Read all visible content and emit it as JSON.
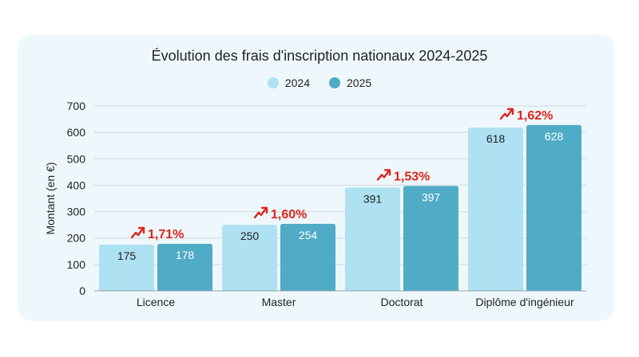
{
  "chart_data": {
    "type": "bar",
    "title": "Évolution des frais d'inscription nationaux 2024-2025",
    "ylabel": "Montant (en €)",
    "xlabel": "",
    "ylim": [
      0,
      700
    ],
    "yticks": [
      0,
      100,
      200,
      300,
      400,
      500,
      600,
      700
    ],
    "grid": true,
    "legend_position": "top-center",
    "categories": [
      "Licence",
      "Master",
      "Doctorat",
      "Diplôme d'ingénieur"
    ],
    "series": [
      {
        "name": "2024",
        "values": [
          175,
          250,
          391,
          618
        ],
        "color": "#aee1f2"
      },
      {
        "name": "2025",
        "values": [
          178,
          254,
          397,
          628
        ],
        "color": "#4fabc6"
      }
    ],
    "annotations": [
      "1,71%",
      "1,60%",
      "1,53%",
      "1,62%"
    ],
    "annotation_color": "#e0231b"
  }
}
